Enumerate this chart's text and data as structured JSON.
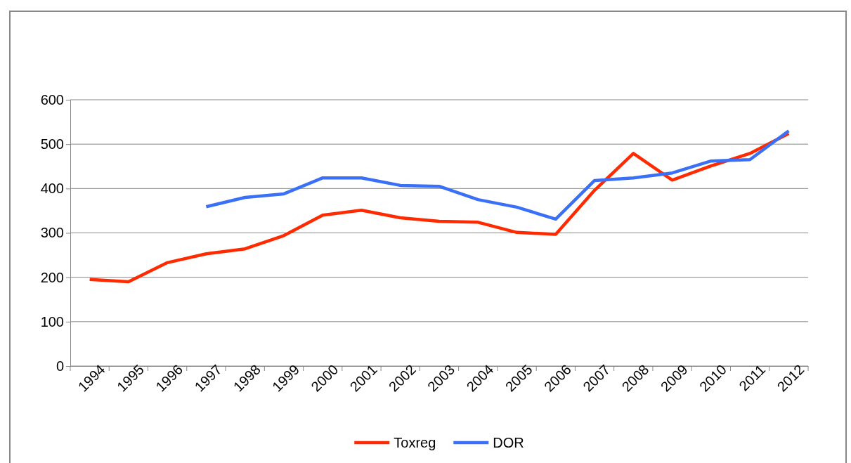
{
  "chart_data": {
    "type": "line",
    "categories": [
      "1994",
      "1995",
      "1996",
      "1997",
      "1998",
      "1999",
      "2000",
      "2001",
      "2002",
      "2003",
      "2004",
      "2005",
      "2006",
      "2007",
      "2008",
      "2009",
      "2010",
      "2011",
      "2012"
    ],
    "series": [
      {
        "name": "Toxreg",
        "color": "#ff2a00",
        "values": [
          195,
          190,
          233,
          253,
          264,
          294,
          340,
          351,
          334,
          326,
          324,
          301,
          297,
          396,
          479,
          419,
          451,
          479,
          524
        ]
      },
      {
        "name": "DOR",
        "color": "#3a6ff7",
        "values": [
          null,
          null,
          null,
          359,
          380,
          388,
          424,
          424,
          407,
          405,
          375,
          358,
          331,
          418,
          424,
          435,
          462,
          465,
          530
        ]
      }
    ],
    "ylim": [
      0,
      600
    ],
    "yticks": [
      0,
      100,
      200,
      300,
      400,
      500,
      600
    ],
    "grid": "y",
    "legend": "bottom",
    "marker": "none",
    "line_style": "solid"
  }
}
